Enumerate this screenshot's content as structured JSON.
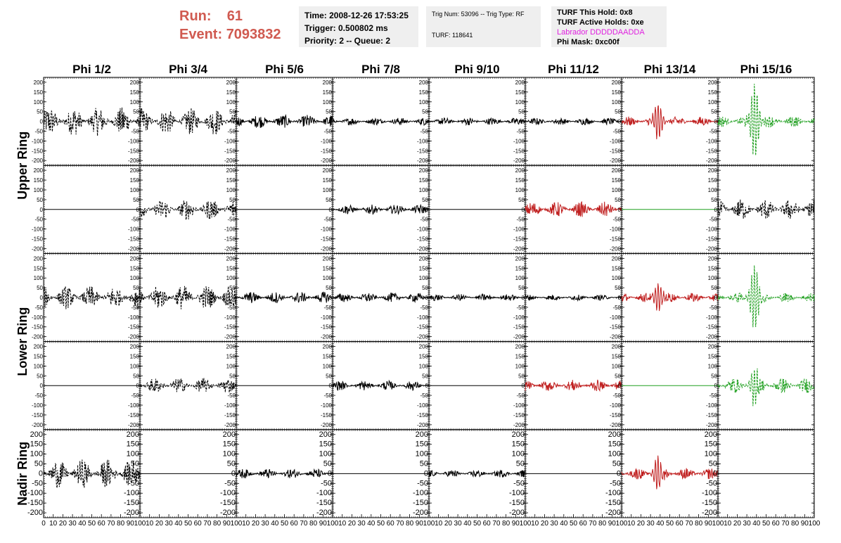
{
  "header": {
    "run_label": "Run:",
    "run_value": "61",
    "event_label": "Event:",
    "event_value": "7093832"
  },
  "info_box_1": {
    "time": "Time: 2008-12-26 17:53:25",
    "trigger": "Trigger: 0.500802 ms",
    "priority": "Priority: 2 -- Queue: 2"
  },
  "info_box_2": {
    "trig": "Trig Num: 53096 -- Trig Type: RF",
    "turf": "TURF: 118641"
  },
  "info_box_3": {
    "this_hold": "TURF This Hold: 0x8",
    "active_holds": "TURF Active Holds: 0xe",
    "labrador": "Labrador DDDDDAADDA",
    "phi_mask": "Phi Mask: 0xc00f"
  },
  "colors": {
    "red_name": "#d05a50",
    "magenta": "#e020e0",
    "trace_black": "#000000",
    "trace_red": "#c02020",
    "trace_green": "#20a020",
    "info_bg": "#efefef"
  },
  "chart_data": {
    "type": "line",
    "columns": [
      "Phi 1/2",
      "Phi 3/4",
      "Phi 5/6",
      "Phi 7/8",
      "Phi 9/10",
      "Phi 11/12",
      "Phi 13/14",
      "Phi 15/16"
    ],
    "row_labels": [
      "Upper Ring",
      "Lower Ring",
      "Nadir Ring"
    ],
    "xlim": [
      0,
      100
    ],
    "ylim": [
      -225,
      225
    ],
    "y_ticks": [
      200,
      150,
      100,
      50,
      0,
      -50,
      -100,
      -150,
      -200
    ],
    "y_tick_labels": [
      "200",
      "150",
      "100",
      "50",
      "0",
      "-50",
      "-100",
      "-150",
      "-200"
    ],
    "x_ticks": [
      0,
      10,
      20,
      30,
      40,
      50,
      60,
      70,
      80,
      90,
      100
    ],
    "x_tick_labels": [
      "0",
      "10",
      "20",
      "30",
      "40",
      "50",
      "60",
      "70",
      "80",
      "90",
      "100"
    ],
    "grid": false,
    "panels": [
      [
        {
          "color": "black",
          "style": "dashed",
          "amp": 75,
          "burst": 0,
          "flat": false
        },
        {
          "color": "black",
          "style": "dashed",
          "amp": 70,
          "burst": 0,
          "flat": false
        },
        {
          "color": "black",
          "style": "solid",
          "amp": 35,
          "burst": 0,
          "flat": false
        },
        {
          "color": "black",
          "style": "solid",
          "amp": 20,
          "burst": 0,
          "flat": false
        },
        {
          "color": "black",
          "style": "solid",
          "amp": 20,
          "burst": 0,
          "flat": false
        },
        {
          "color": "black",
          "style": "solid",
          "amp": 18,
          "burst": 0,
          "flat": false
        },
        {
          "color": "red",
          "style": "solid",
          "amp": 25,
          "burst": 90,
          "flat": false
        },
        {
          "color": "green",
          "style": "dashed",
          "amp": 30,
          "burst": 200,
          "flat": false
        }
      ],
      [
        {
          "color": "black",
          "style": "solid",
          "amp": 0,
          "burst": 0,
          "flat": true
        },
        {
          "color": "black",
          "style": "dashed",
          "amp": 55,
          "burst": 0,
          "flat": false
        },
        {
          "color": "black",
          "style": "solid",
          "amp": 0,
          "burst": 0,
          "flat": true
        },
        {
          "color": "black",
          "style": "solid",
          "amp": 25,
          "burst": 0,
          "flat": false
        },
        {
          "color": "black",
          "style": "solid",
          "amp": 0,
          "burst": 0,
          "flat": true
        },
        {
          "color": "red",
          "style": "solid",
          "amp": 40,
          "burst": 0,
          "flat": false
        },
        {
          "color": "green",
          "style": "solid",
          "amp": 0,
          "burst": 0,
          "flat": true
        },
        {
          "color": "black",
          "style": "dashed",
          "amp": 55,
          "burst": 0,
          "flat": false
        }
      ],
      [
        {
          "color": "black",
          "style": "dashed",
          "amp": 60,
          "burst": 0,
          "flat": false
        },
        {
          "color": "black",
          "style": "dashed",
          "amp": 65,
          "burst": 0,
          "flat": false
        },
        {
          "color": "black",
          "style": "solid",
          "amp": 30,
          "burst": 0,
          "flat": false
        },
        {
          "color": "black",
          "style": "solid",
          "amp": 25,
          "burst": 0,
          "flat": false
        },
        {
          "color": "black",
          "style": "solid",
          "amp": 18,
          "burst": 0,
          "flat": false
        },
        {
          "color": "black",
          "style": "solid",
          "amp": 15,
          "burst": 0,
          "flat": false
        },
        {
          "color": "red",
          "style": "solid",
          "amp": 25,
          "burst": 75,
          "flat": false
        },
        {
          "color": "green",
          "style": "dashed",
          "amp": 25,
          "burst": 170,
          "flat": false
        }
      ],
      [
        {
          "color": "black",
          "style": "solid",
          "amp": 0,
          "burst": 0,
          "flat": true
        },
        {
          "color": "black",
          "style": "dashed",
          "amp": 40,
          "burst": 0,
          "flat": false
        },
        {
          "color": "black",
          "style": "solid",
          "amp": 0,
          "burst": 0,
          "flat": true
        },
        {
          "color": "black",
          "style": "solid",
          "amp": 25,
          "burst": 0,
          "flat": false
        },
        {
          "color": "black",
          "style": "solid",
          "amp": 0,
          "burst": 0,
          "flat": true
        },
        {
          "color": "red",
          "style": "solid",
          "amp": 30,
          "burst": 0,
          "flat": false
        },
        {
          "color": "green",
          "style": "solid",
          "amp": 0,
          "burst": 0,
          "flat": true
        },
        {
          "color": "green",
          "style": "dashed",
          "amp": 40,
          "burst": 90,
          "flat": false
        }
      ],
      [
        {
          "color": "black",
          "style": "dashed",
          "amp": 75,
          "burst": 0,
          "flat": false
        },
        {
          "color": "black",
          "style": "solid",
          "amp": 0,
          "burst": 0,
          "flat": true
        },
        {
          "color": "black",
          "style": "solid",
          "amp": 25,
          "burst": 0,
          "flat": false
        },
        {
          "color": "black",
          "style": "solid",
          "amp": 0,
          "burst": 0,
          "flat": true
        },
        {
          "color": "black",
          "style": "solid",
          "amp": 20,
          "burst": 0,
          "flat": false
        },
        {
          "color": "black",
          "style": "solid",
          "amp": 0,
          "burst": 0,
          "flat": true
        },
        {
          "color": "red",
          "style": "solid",
          "amp": 30,
          "burst": 85,
          "flat": false
        },
        {
          "color": "black",
          "style": "solid",
          "amp": 0,
          "burst": 0,
          "flat": true
        }
      ]
    ]
  }
}
